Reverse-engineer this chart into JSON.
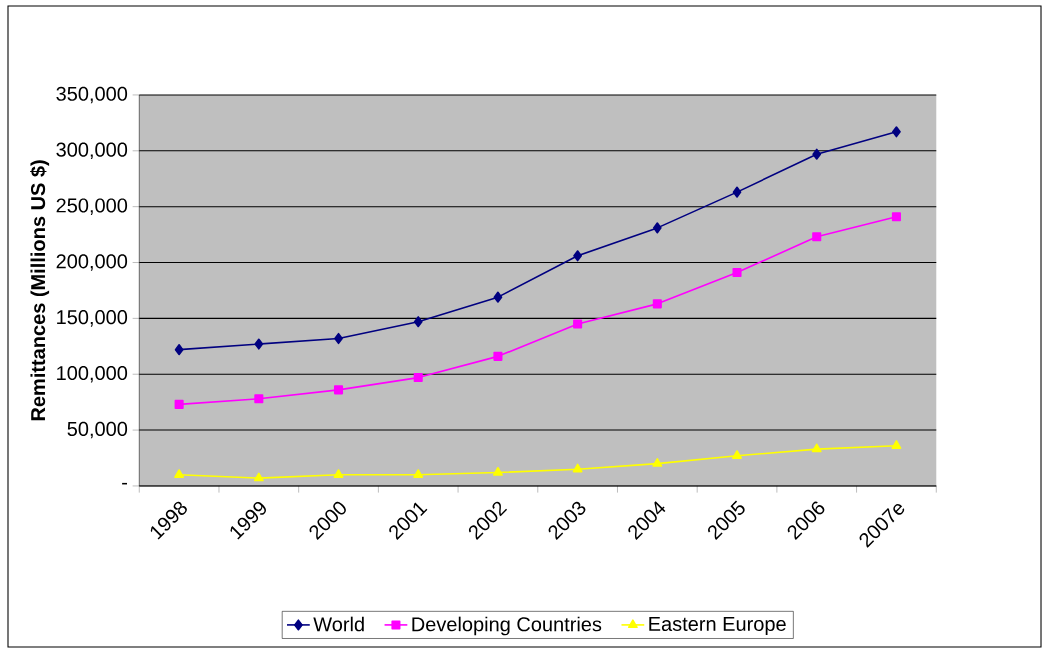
{
  "chart_data": {
    "type": "line",
    "ylabel": "Remittances (Millions US $)",
    "categories": [
      "1998",
      "1999",
      "2000",
      "2001",
      "2002",
      "2003",
      "2004",
      "2005",
      "2006",
      "2007e"
    ],
    "series": [
      {
        "name": "World",
        "color": "#000080",
        "marker": "diamond",
        "values": [
          122000,
          127000,
          132000,
          147000,
          169000,
          206000,
          231000,
          263000,
          297000,
          317000
        ]
      },
      {
        "name": "Developing Countries",
        "color": "#ff00ff",
        "marker": "square",
        "values": [
          73000,
          78000,
          86000,
          97000,
          116000,
          145000,
          163000,
          191000,
          223000,
          241000
        ]
      },
      {
        "name": "Eastern Europe",
        "color": "#ffff00",
        "marker": "triangle",
        "values": [
          10000,
          7000,
          10000,
          10000,
          12000,
          15000,
          20000,
          27000,
          33000,
          36000
        ]
      }
    ],
    "ylim": [
      0,
      350000
    ],
    "yticks": [
      {
        "value": 0,
        "label": "-"
      },
      {
        "value": 50000,
        "label": "50,000"
      },
      {
        "value": 100000,
        "label": "100,000"
      },
      {
        "value": 150000,
        "label": "150,000"
      },
      {
        "value": 200000,
        "label": "200,000"
      },
      {
        "value": 250000,
        "label": "250,000"
      },
      {
        "value": 300000,
        "label": "300,000"
      },
      {
        "value": 350000,
        "label": "350,000"
      }
    ],
    "grid": "y",
    "legend": "bottom"
  }
}
